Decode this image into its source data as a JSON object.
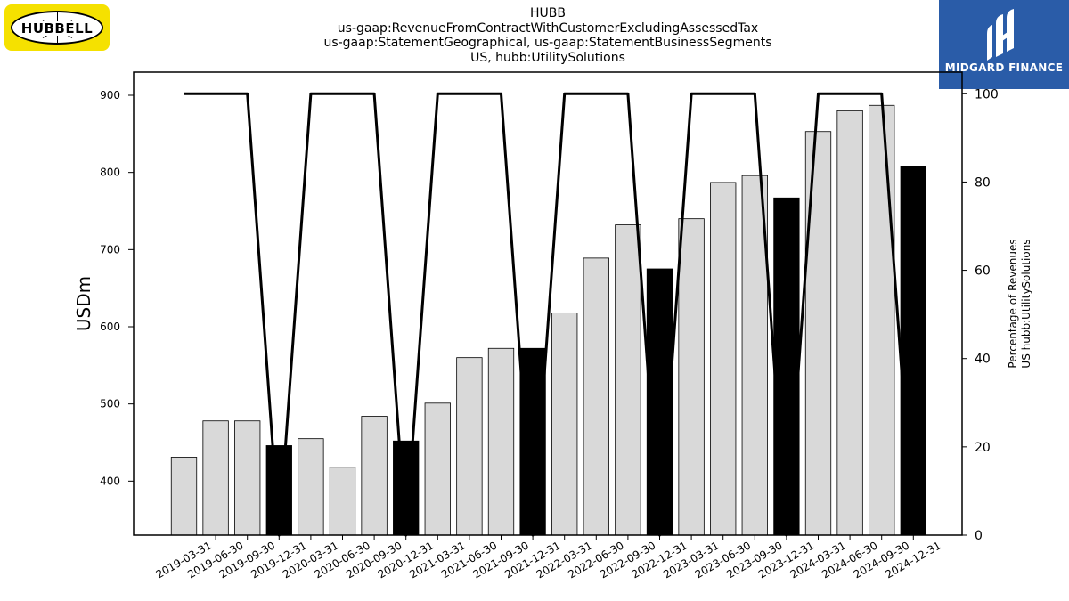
{
  "header": {
    "title_lines": [
      "HUBB",
      "us-gaap:RevenueFromContractWithCustomerExcludingAssessedTax",
      "us-gaap:StatementGeographical, us-gaap:StatementBusinessSegments",
      "US, hubb:UtilitySolutions"
    ]
  },
  "logos": {
    "left_text": "HUBBELL",
    "right_text": "MIDGARD FINANCE",
    "left_bg": "#f5e100",
    "right_bg": "#2a5ca8"
  },
  "chart_data": {
    "type": "bar",
    "title": "HUBB",
    "ylabel": "USDm",
    "y2label_lines": [
      "Percentage of Revenues",
      "US hubb:UtilitySolutions"
    ],
    "ylim": [
      330,
      930
    ],
    "y2lim": [
      0,
      104.9
    ],
    "yticks": [
      400,
      500,
      600,
      700,
      800,
      900
    ],
    "y2ticks": [
      0,
      20,
      40,
      60,
      80,
      100
    ],
    "categories": [
      "2019-03-31",
      "2019-06-30",
      "2019-09-30",
      "2019-12-31",
      "2020-03-31",
      "2020-06-30",
      "2020-09-30",
      "2020-12-31",
      "2021-03-31",
      "2021-06-30",
      "2021-09-30",
      "2021-12-31",
      "2022-03-31",
      "2022-06-30",
      "2022-09-30",
      "2022-12-31",
      "2023-03-31",
      "2023-06-30",
      "2023-09-30",
      "2023-12-31",
      "2024-03-31",
      "2024-06-30",
      "2024-09-30",
      "2024-12-31"
    ],
    "series": [
      {
        "kind": "bar",
        "values": [
          431,
          478,
          478,
          446,
          455,
          418,
          484,
          452,
          501,
          560,
          572,
          572,
          618,
          689,
          732,
          675,
          740,
          787,
          796,
          767,
          853,
          880,
          887,
          808
        ],
        "highlight": [
          false,
          false,
          false,
          true,
          false,
          false,
          false,
          true,
          false,
          false,
          false,
          true,
          false,
          false,
          false,
          true,
          false,
          false,
          false,
          true,
          false,
          false,
          false,
          true
        ]
      },
      {
        "kind": "line",
        "axis": "right",
        "values": [
          100,
          100,
          100,
          0,
          100,
          100,
          100,
          0,
          100,
          100,
          100,
          0,
          100,
          100,
          100,
          0,
          100,
          100,
          100,
          0,
          100,
          100,
          100,
          0
        ]
      }
    ],
    "colors": {
      "bar": "#d9d9d9",
      "bar_highlight": "#000000",
      "bar_edge": "#000000",
      "line": "#000000"
    },
    "grid": false,
    "legend": "none"
  }
}
